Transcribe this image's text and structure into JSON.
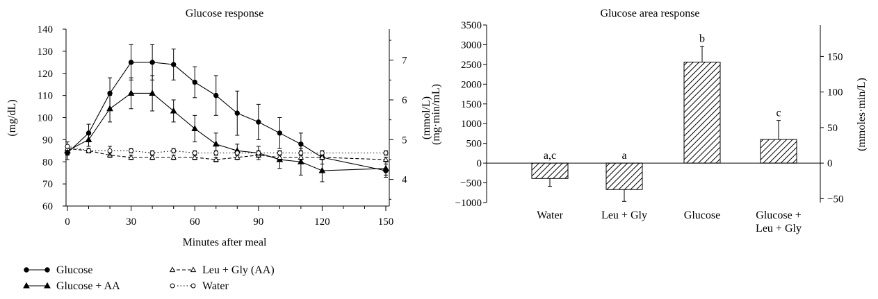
{
  "chart_data": [
    {
      "type": "line",
      "title": "Glucose response",
      "xlabel": "Minutes after meal",
      "ylabel": "(mg/dL)",
      "y2label": "(mmol/L)",
      "xlim": [
        0,
        150
      ],
      "ylim": [
        60,
        140
      ],
      "y2lim": [
        3.33,
        7.78
      ],
      "x_ticks": [
        "0",
        "30",
        "60",
        "90",
        "120",
        "150"
      ],
      "y_ticks": [
        "60",
        "70",
        "80",
        "90",
        "100",
        "110",
        "120",
        "130",
        "140"
      ],
      "y2_ticks": [
        "4",
        "5",
        "6",
        "7"
      ],
      "legend_position": "bottom",
      "series": [
        {
          "name": "Glucose",
          "marker": "filled-circle",
          "line": "solid",
          "x": [
            0,
            10,
            20,
            30,
            40,
            50,
            60,
            70,
            80,
            90,
            100,
            110,
            120,
            150
          ],
          "y": [
            84,
            93,
            111,
            125,
            125,
            124,
            116,
            110,
            102,
            98,
            93,
            88,
            82,
            76
          ],
          "err": [
            3,
            4,
            7,
            8,
            8,
            7,
            7,
            9,
            10,
            8,
            7,
            5,
            3,
            3
          ]
        },
        {
          "name": "Glucose + AA",
          "marker": "filled-triangle",
          "line": "solid",
          "x": [
            0,
            10,
            20,
            30,
            40,
            50,
            60,
            70,
            80,
            90,
            100,
            110,
            120,
            150
          ],
          "y": [
            85,
            90,
            104,
            111,
            111,
            103,
            95,
            88,
            85,
            84,
            81,
            80,
            76,
            77
          ],
          "err": [
            2,
            3,
            6,
            7,
            8,
            5,
            6,
            5,
            3,
            3,
            4,
            6,
            5,
            3
          ]
        },
        {
          "name": "Leu + Gly (AA)",
          "marker": "open-triangle",
          "line": "dashed",
          "x": [
            0,
            10,
            20,
            30,
            40,
            50,
            60,
            70,
            80,
            90,
            100,
            110,
            120,
            150
          ],
          "y": [
            86,
            85,
            83,
            82,
            82,
            82,
            82,
            81,
            82,
            83,
            82,
            82,
            82,
            81
          ],
          "err": [
            1,
            1,
            1,
            1,
            1,
            1,
            1,
            1,
            1,
            1,
            1,
            1,
            1,
            1
          ]
        },
        {
          "name": "Water",
          "marker": "open-circle",
          "line": "dotted",
          "x": [
            0,
            10,
            20,
            30,
            40,
            50,
            60,
            70,
            80,
            90,
            100,
            110,
            120,
            150
          ],
          "y": [
            87,
            85,
            85,
            85,
            84,
            85,
            84,
            84,
            84,
            84,
            84,
            84,
            84,
            84
          ],
          "err": [
            2,
            1,
            2,
            1,
            1,
            1,
            1,
            1,
            1,
            1,
            1,
            1,
            1,
            1
          ]
        }
      ]
    },
    {
      "type": "bar",
      "title": "Glucose area response",
      "ylabel": "(mg·min/mL)",
      "y2label": "(mmoles·min/L)",
      "ylim": [
        -1000,
        3500
      ],
      "y2lim": [
        -55.5,
        194.3
      ],
      "y_ticks": [
        "−1000",
        "−500",
        "0",
        "500",
        "1000",
        "1500",
        "2000",
        "2500",
        "3000",
        "3500"
      ],
      "y2_ticks": [
        "−50",
        "0",
        "50",
        "100",
        "150"
      ],
      "categories": [
        "Water",
        "Leu + Gly",
        "Glucose",
        "Glucose + Leu + Gly"
      ],
      "category_lines": [
        [
          "Water"
        ],
        [
          "Leu + Gly"
        ],
        [
          "Glucose"
        ],
        [
          "Glucose +",
          "Leu + Gly"
        ]
      ],
      "values": [
        -390,
        -670,
        2560,
        600
      ],
      "err": [
        200,
        300,
        400,
        480
      ],
      "annotations": [
        "a,c",
        "a",
        "b",
        "c"
      ],
      "bar_pattern": "diagonal-hatch"
    }
  ]
}
